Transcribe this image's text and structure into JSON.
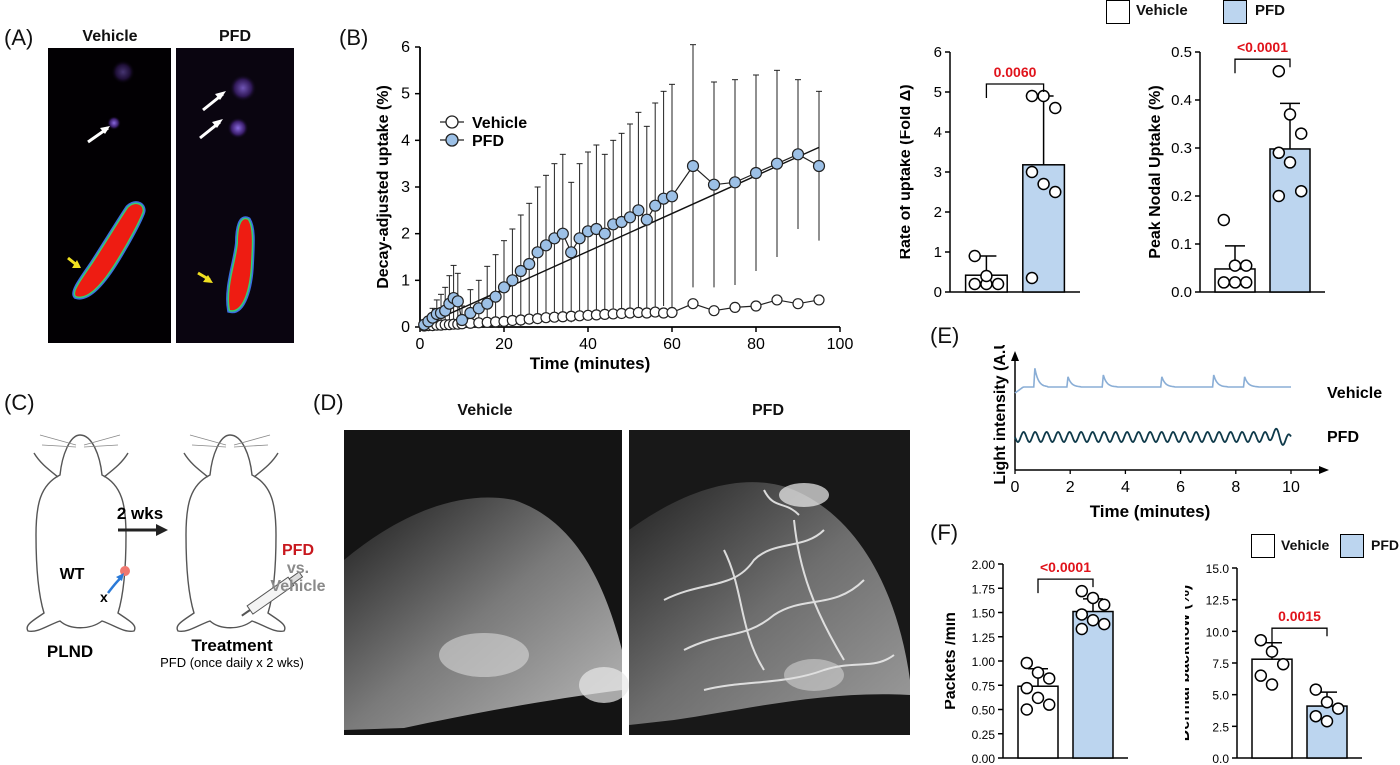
{
  "panel_labels": {
    "a": "(A)",
    "b": "(B)",
    "c": "(C)",
    "d": "(D)",
    "e": "(E)",
    "f": "(F)"
  },
  "panel_a": {
    "col_vehicle": "Vehicle",
    "col_pfd": "PFD"
  },
  "panel_c": {
    "arrow_label": "2 wks",
    "mouse_label": "WT",
    "x_mark": "x",
    "treat_pfd": "PFD",
    "treat_vs": "vs.",
    "treat_vehicle": "Vehicle",
    "left_caption": "PLND",
    "right_caption": "Treatment",
    "right_subcaption": "PFD (once daily x 2 wks)"
  },
  "panel_d": {
    "col_vehicle": "Vehicle",
    "col_pfd": "PFD"
  },
  "top_legend": {
    "vehicle": "Vehicle",
    "pfd": "PFD"
  },
  "colors": {
    "vehicle_fill": "#ffffff",
    "pfd_fill": "#bcd5ef",
    "pfd_line": "#1a3e5c",
    "vehicle_trace": "#8aaed6",
    "pfd_trace": "#0f3a4a",
    "sig_red": "#e0131b"
  },
  "chart_data": [
    {
      "id": "B",
      "type": "line",
      "xlabel": "Time (minutes)",
      "ylabel": "Decay-adjusted uptake (%)",
      "xlim": [
        0,
        100
      ],
      "ylim": [
        0,
        6
      ],
      "xticks": [
        "0",
        "20",
        "40",
        "60",
        "80",
        "100"
      ],
      "yticks": [
        "0",
        "1",
        "2",
        "3",
        "4",
        "5",
        "6"
      ],
      "legend": [
        "Vehicle",
        "PFD"
      ],
      "series": [
        {
          "name": "Vehicle",
          "x": [
            1,
            2,
            3,
            4,
            5,
            6,
            7,
            8,
            9,
            10,
            12,
            14,
            16,
            18,
            20,
            22,
            24,
            26,
            28,
            30,
            32,
            34,
            36,
            38,
            40,
            42,
            44,
            46,
            48,
            50,
            52,
            54,
            56,
            58,
            60,
            65,
            70,
            75,
            80,
            85,
            90,
            95
          ],
          "y": [
            0.02,
            0.03,
            0.03,
            0.04,
            0.04,
            0.05,
            0.05,
            0.06,
            0.06,
            0.07,
            0.08,
            0.09,
            0.1,
            0.11,
            0.12,
            0.14,
            0.15,
            0.17,
            0.18,
            0.2,
            0.21,
            0.22,
            0.23,
            0.24,
            0.25,
            0.26,
            0.27,
            0.28,
            0.29,
            0.3,
            0.31,
            0.3,
            0.32,
            0.3,
            0.31,
            0.5,
            0.35,
            0.42,
            0.45,
            0.58,
            0.5,
            0.58
          ]
        },
        {
          "name": "PFD",
          "x": [
            1,
            2,
            3,
            4,
            5,
            6,
            7,
            8,
            9,
            10,
            12,
            14,
            16,
            18,
            20,
            22,
            24,
            26,
            28,
            30,
            32,
            34,
            36,
            38,
            40,
            42,
            44,
            46,
            48,
            50,
            52,
            54,
            56,
            58,
            60,
            65,
            70,
            75,
            80,
            85,
            90,
            95
          ],
          "y": [
            0.05,
            0.12,
            0.2,
            0.28,
            0.3,
            0.35,
            0.5,
            0.62,
            0.55,
            0.15,
            0.3,
            0.4,
            0.5,
            0.65,
            0.85,
            1.0,
            1.2,
            1.35,
            1.6,
            1.75,
            1.9,
            2.0,
            1.6,
            1.9,
            2.05,
            2.1,
            2.0,
            2.2,
            2.25,
            2.35,
            2.5,
            2.3,
            2.6,
            2.75,
            2.8,
            3.45,
            3.05,
            3.1,
            3.3,
            3.5,
            3.7,
            3.45
          ],
          "err": [
            0.05,
            0.1,
            0.2,
            0.3,
            0.4,
            0.5,
            0.6,
            0.7,
            0.6,
            0.3,
            0.5,
            0.6,
            0.8,
            0.9,
            1.0,
            1.1,
            1.2,
            1.3,
            1.4,
            1.5,
            1.6,
            1.7,
            1.5,
            1.6,
            1.7,
            1.8,
            1.7,
            1.8,
            1.9,
            2.0,
            2.1,
            2.0,
            2.2,
            2.3,
            2.4,
            2.6,
            2.2,
            2.2,
            2.1,
            2.0,
            1.6,
            1.6
          ]
        }
      ],
      "fit_line": {
        "x0": 0,
        "y0": 0,
        "x1": 95,
        "y1": 3.85
      }
    },
    {
      "id": "B-rate",
      "type": "bar",
      "ylabel": "Rate of uptake (Fold Δ)",
      "ylim": [
        0,
        6
      ],
      "yticks": [
        "0",
        "1",
        "2",
        "3",
        "4",
        "5",
        "6"
      ],
      "categories": [
        "Vehicle",
        "PFD"
      ],
      "values": [
        0.42,
        3.18
      ],
      "sd": [
        0.48,
        1.72
      ],
      "points": [
        [
          0.2,
          0.2,
          0.2,
          0.9,
          0.4
        ],
        [
          4.9,
          4.9,
          4.6,
          3.0,
          2.7,
          2.5,
          0.35
        ]
      ],
      "p_value": "0.0060"
    },
    {
      "id": "B-peak",
      "type": "bar",
      "ylabel": "Peak Nodal Uptake (%)",
      "ylim": [
        0,
        0.5
      ],
      "yticks": [
        "0.0",
        "0.1",
        "0.2",
        "0.3",
        "0.4",
        "0.5"
      ],
      "categories": [
        "Vehicle",
        "PFD"
      ],
      "values": [
        0.048,
        0.298
      ],
      "sd": [
        0.048,
        0.095
      ],
      "points": [
        [
          0.15,
          0.055,
          0.02,
          0.02,
          0.02,
          0.055
        ],
        [
          0.46,
          0.37,
          0.33,
          0.29,
          0.27,
          0.21,
          0.2
        ]
      ],
      "p_value": "<0.0001"
    },
    {
      "id": "E",
      "type": "line",
      "xlabel": "Time (minutes)",
      "ylabel": "Light intensity (A.U.)",
      "xlim": [
        0,
        10
      ],
      "xticks": [
        "0",
        "2",
        "4",
        "6",
        "8",
        "10"
      ],
      "series": [
        {
          "name": "Vehicle"
        },
        {
          "name": "PFD"
        }
      ]
    },
    {
      "id": "F-packets",
      "type": "bar",
      "ylabel": "Packets /min",
      "ylim": [
        0,
        2
      ],
      "yticks": [
        "0.00",
        "0.25",
        "0.50",
        "0.75",
        "1.00",
        "1.25",
        "1.50",
        "1.75",
        "2.00"
      ],
      "categories": [
        "Vehicle",
        "PFD"
      ],
      "values": [
        0.74,
        1.51
      ],
      "sd": [
        0.18,
        0.13
      ],
      "points": [
        [
          0.98,
          0.88,
          0.82,
          0.72,
          0.62,
          0.55,
          0.5
        ],
        [
          1.72,
          1.65,
          1.58,
          1.48,
          1.42,
          1.38,
          1.33
        ]
      ],
      "p_value": "<0.0001"
    },
    {
      "id": "F-backflow",
      "type": "bar",
      "ylabel": "Dermal backflow (%)",
      "ylim": [
        0,
        15
      ],
      "yticks": [
        "0.0",
        "2.5",
        "5.0",
        "7.5",
        "10.0",
        "12.5",
        "15.0"
      ],
      "categories": [
        "Vehicle",
        "PFD"
      ],
      "values": [
        7.8,
        4.1
      ],
      "sd": [
        1.3,
        1.1
      ],
      "points": [
        [
          9.3,
          8.4,
          7.4,
          6.5,
          5.8
        ],
        [
          5.4,
          4.4,
          3.9,
          3.3,
          2.9
        ]
      ],
      "p_value": "0.0015"
    }
  ]
}
